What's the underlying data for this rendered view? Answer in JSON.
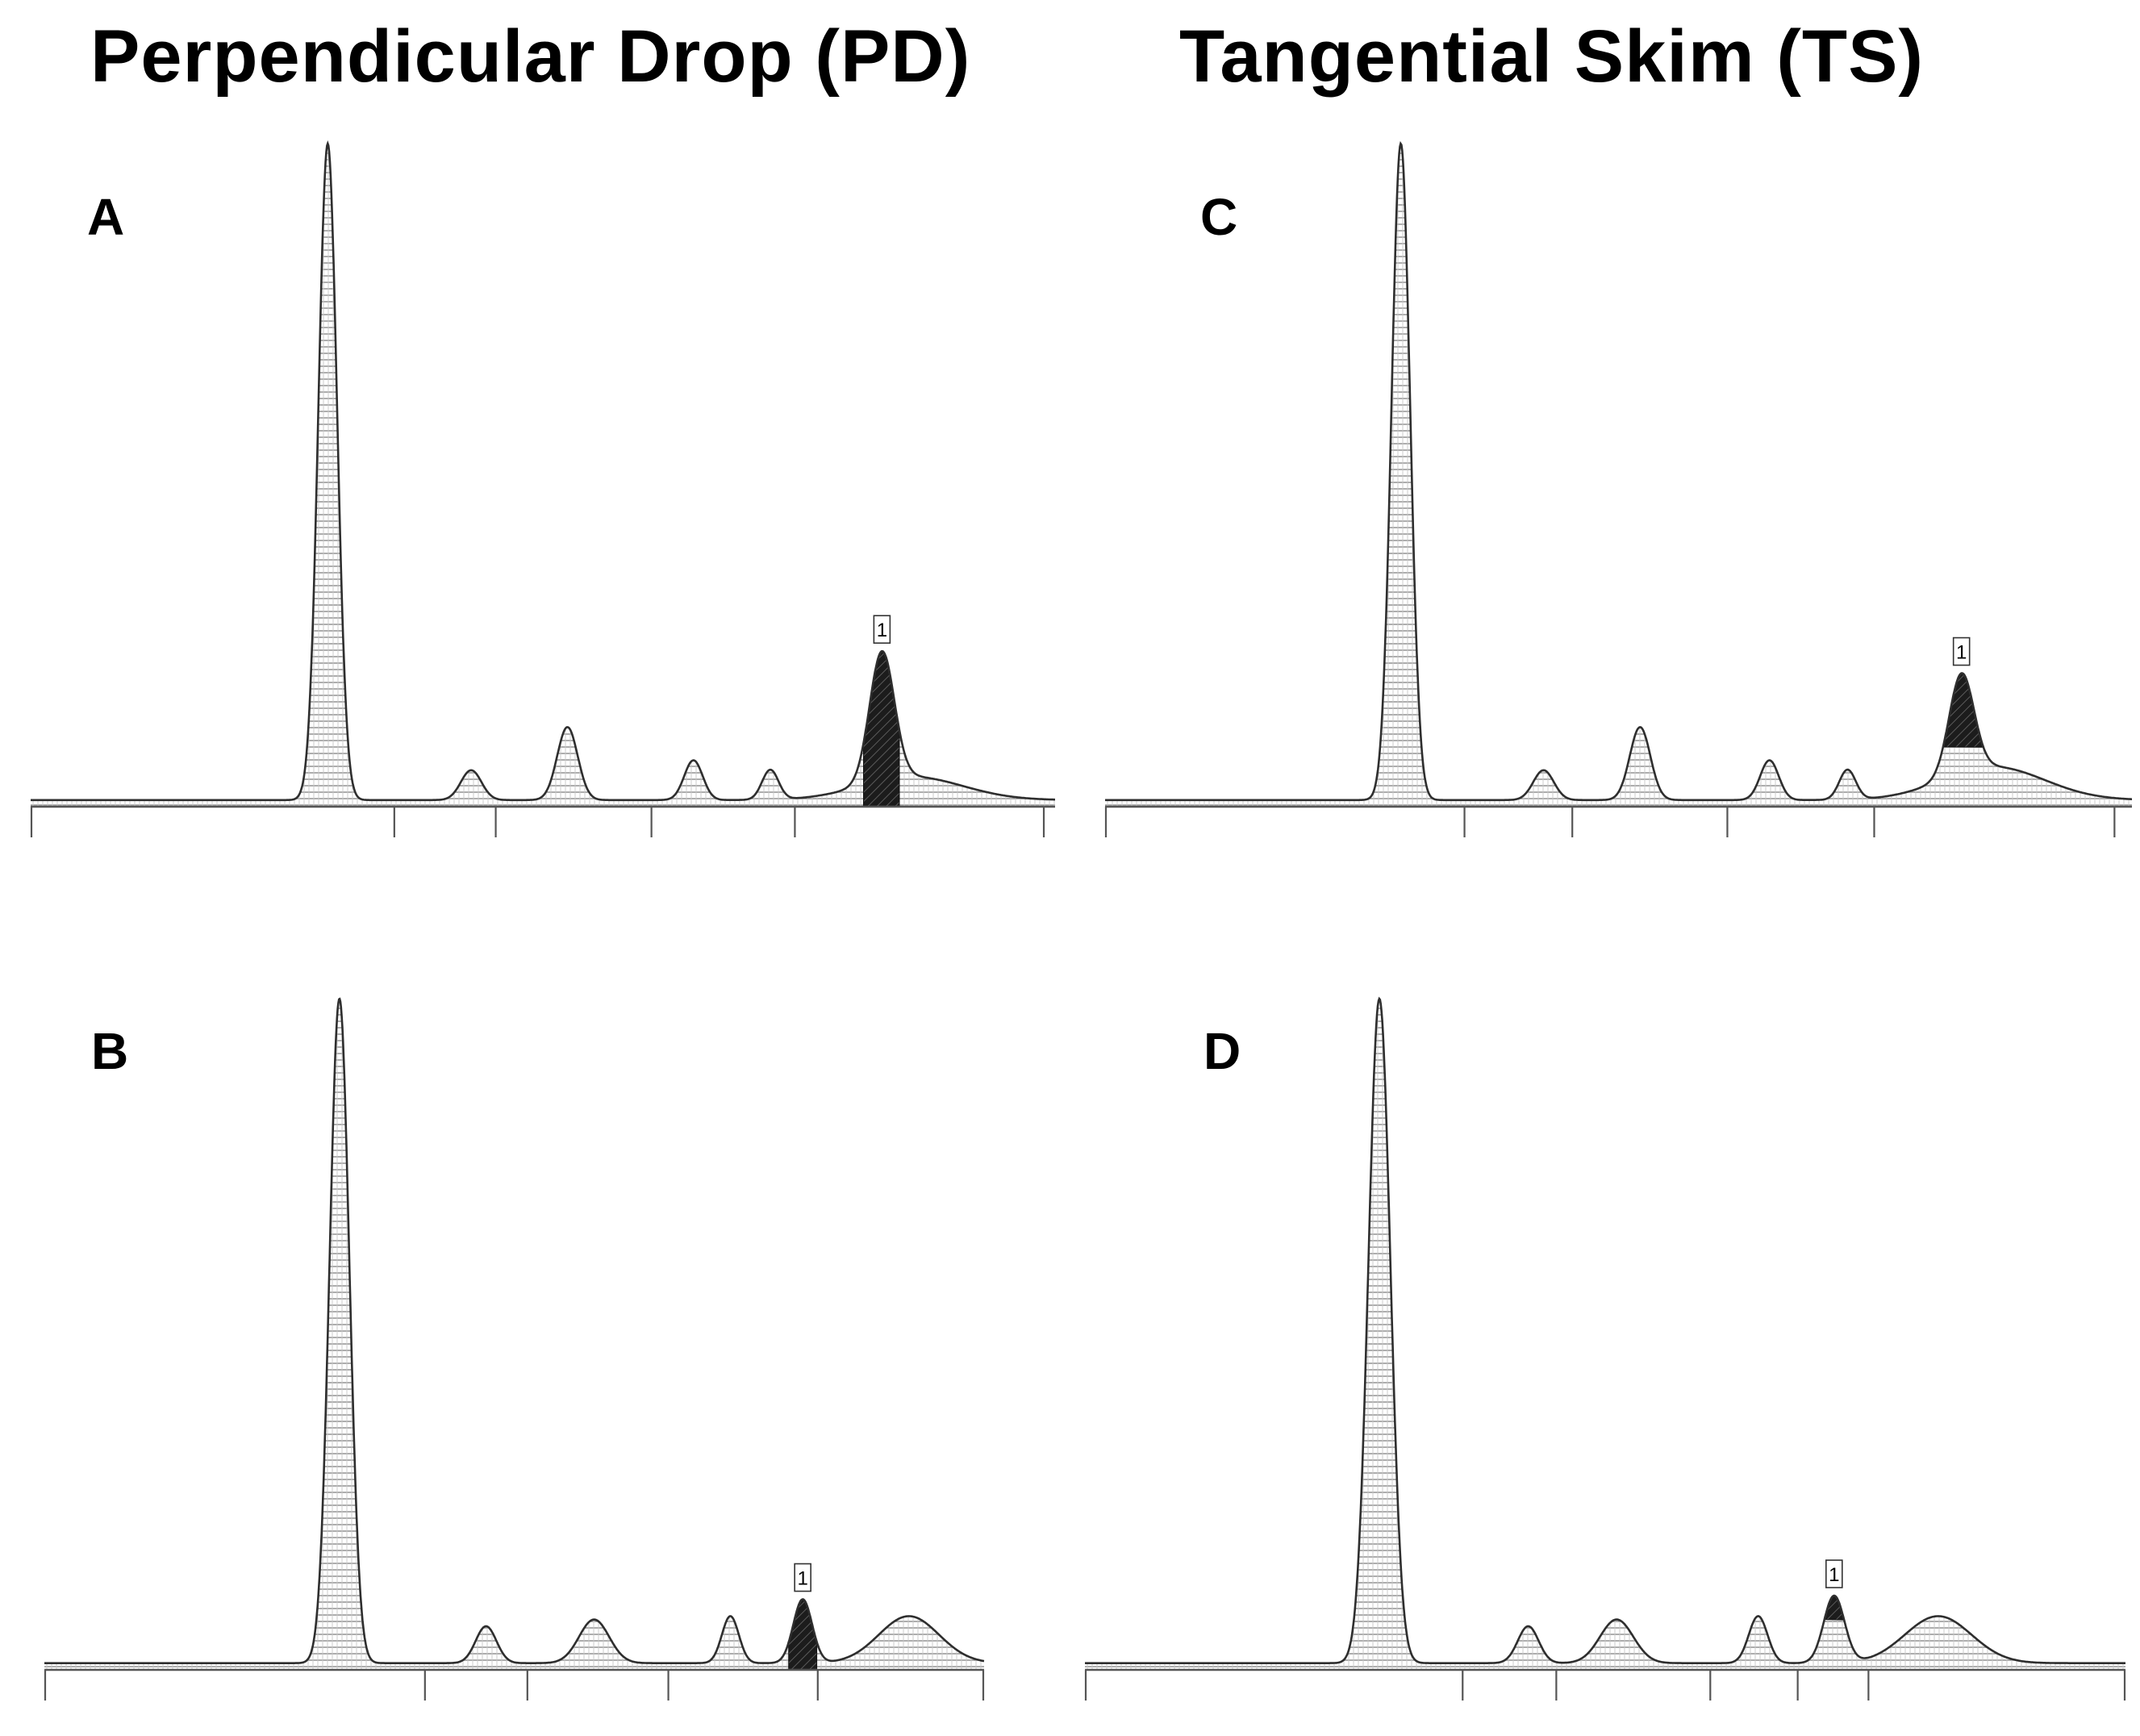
{
  "columns": [
    {
      "id": "pd",
      "title": "Perpendicular Drop (PD)"
    },
    {
      "id": "ts",
      "title": "Tangential Skim (TS)"
    }
  ],
  "chart_data": [
    {
      "type": "line",
      "panel": "A",
      "column": "Perpendicular Drop (PD)",
      "method": "perpendicular drop",
      "marker_label": "1",
      "xlim": [
        0,
        100
      ],
      "ylim": [
        0,
        100
      ],
      "grid": false,
      "baseline": 1,
      "x_ticks": [
        0,
        35.5,
        45.4,
        60.6,
        74.6,
        98.9
      ],
      "peaks": [
        {
          "center": 29.0,
          "height": 99,
          "sigma": 0.9
        },
        {
          "center": 43.0,
          "height": 4.5,
          "sigma": 1.0
        },
        {
          "center": 52.4,
          "height": 11,
          "sigma": 1.0
        },
        {
          "center": 64.7,
          "height": 6,
          "sigma": 0.9
        },
        {
          "center": 72.2,
          "height": 4.5,
          "sigma": 0.8
        },
        {
          "center": 83.1,
          "height": 19.5,
          "sigma": 1.2
        },
        {
          "center": 86,
          "height": 3.5,
          "sigma": 5
        }
      ],
      "highlight": [
        81.3,
        84.8
      ]
    },
    {
      "type": "line",
      "panel": "B",
      "column": "Perpendicular Drop (PD)",
      "method": "perpendicular drop",
      "marker_label": "1",
      "xlim": [
        0,
        100
      ],
      "ylim": [
        0,
        100
      ],
      "grid": false,
      "baseline": 1,
      "x_ticks": [
        0,
        40.5,
        51.4,
        66.4,
        82.3,
        100
      ],
      "peaks": [
        {
          "center": 31.4,
          "height": 99,
          "sigma": 1.05
        },
        {
          "center": 47.0,
          "height": 5.5,
          "sigma": 1.1
        },
        {
          "center": 58.5,
          "height": 6.5,
          "sigma": 1.6
        },
        {
          "center": 73.0,
          "height": 7,
          "sigma": 0.9
        },
        {
          "center": 80.7,
          "height": 9.5,
          "sigma": 1.0
        },
        {
          "center": 92.0,
          "height": 7,
          "sigma": 3.2
        }
      ],
      "highlight": [
        79.2,
        82.2
      ]
    },
    {
      "type": "line",
      "panel": "C",
      "column": "Tangential Skim (TS)",
      "method": "tangential skim",
      "marker_label": "1",
      "xlim": [
        0,
        100
      ],
      "ylim": [
        0,
        100
      ],
      "grid": false,
      "baseline": 1,
      "x_ticks": [
        0,
        35.0,
        45.5,
        60.6,
        74.9,
        98.3
      ],
      "peaks": [
        {
          "center": 28.8,
          "height": 99,
          "sigma": 0.9
        },
        {
          "center": 42.7,
          "height": 4.5,
          "sigma": 1.0
        },
        {
          "center": 52.1,
          "height": 11,
          "sigma": 1.0
        },
        {
          "center": 64.7,
          "height": 6,
          "sigma": 0.9
        },
        {
          "center": 72.3,
          "height": 4.5,
          "sigma": 0.8
        },
        {
          "center": 83.4,
          "height": 15,
          "sigma": 1.2
        },
        {
          "center": 86.5,
          "height": 5,
          "sigma": 5
        }
      ],
      "highlight_from_height": 9
    },
    {
      "type": "line",
      "panel": "D",
      "column": "Tangential Skim (TS)",
      "method": "tangential skim",
      "marker_label": "1",
      "xlim": [
        0,
        100
      ],
      "ylim": [
        0,
        100
      ],
      "grid": false,
      "baseline": 1,
      "x_ticks": [
        0,
        36.3,
        45.3,
        60.1,
        68.5,
        75.3,
        100
      ],
      "peaks": [
        {
          "center": 28.3,
          "height": 99,
          "sigma": 1.05
        },
        {
          "center": 42.6,
          "height": 5.5,
          "sigma": 1.0
        },
        {
          "center": 51.1,
          "height": 6.5,
          "sigma": 1.6
        },
        {
          "center": 64.7,
          "height": 7,
          "sigma": 0.9
        },
        {
          "center": 72.0,
          "height": 10,
          "sigma": 1.0
        },
        {
          "center": 82.0,
          "height": 7,
          "sigma": 3.2
        }
      ],
      "highlight_from_height": 7.5
    }
  ]
}
